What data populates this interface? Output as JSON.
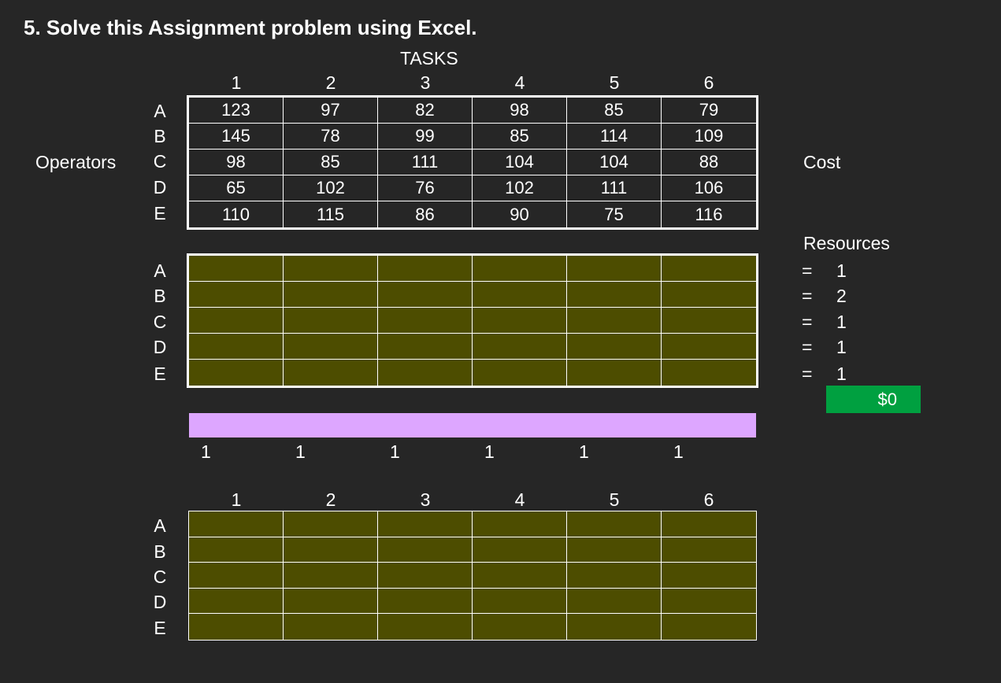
{
  "title": "5. Solve this Assignment problem using Excel.",
  "tasks_label": "TASKS",
  "operators_label": "Operators",
  "cost_label": "Cost",
  "resources_label": "Resources",
  "column_headers": [
    "1",
    "2",
    "3",
    "4",
    "5",
    "6"
  ],
  "row_headers": [
    "A",
    "B",
    "C",
    "D",
    "E"
  ],
  "cost_matrix": [
    [
      "123",
      "97",
      "82",
      "98",
      "85",
      "79"
    ],
    [
      "145",
      "78",
      "99",
      "85",
      "114",
      "109"
    ],
    [
      "98",
      "85",
      "111",
      "104",
      "104",
      "88"
    ],
    [
      "65",
      "102",
      "76",
      "102",
      "111",
      "106"
    ],
    [
      "110",
      "115",
      "86",
      "90",
      "75",
      "116"
    ]
  ],
  "constraints": [
    {
      "sign": "=",
      "value": "1"
    },
    {
      "sign": "=",
      "value": "2"
    },
    {
      "sign": "=",
      "value": "1"
    },
    {
      "sign": "=",
      "value": "1"
    },
    {
      "sign": "=",
      "value": "1"
    }
  ],
  "total_cost": "$0",
  "task_requirements": [
    "1",
    "1",
    "1",
    "1",
    "1",
    "1"
  ],
  "colors": {
    "background": "#262626",
    "decision_cell": "#4d4d00",
    "sum_bar": "#dda6ff",
    "total_cell": "#00a040"
  }
}
